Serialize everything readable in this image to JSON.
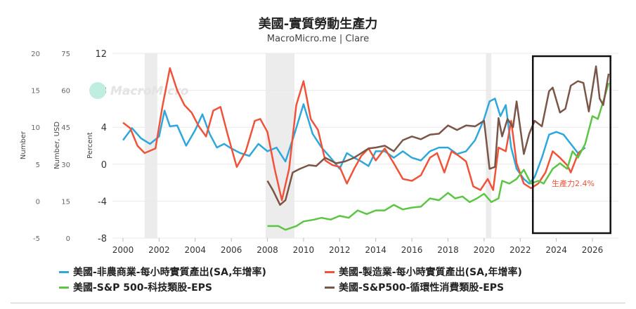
{
  "chart_data": {
    "type": "line",
    "title": "美國-實質勞動生產力",
    "subtitle": "MacroMicro.me | Clare",
    "watermark": "MacroMicro",
    "xlabel": "",
    "xlim": [
      2000,
      2027
    ],
    "x_ticks": [
      "2000",
      "2002",
      "2004",
      "2006",
      "2008",
      "2010",
      "2012",
      "2014",
      "2016",
      "2018",
      "2020",
      "2022",
      "2024",
      "2026"
    ],
    "y_axes": [
      {
        "label": "Number",
        "ticks": [
          "20",
          "15",
          "10",
          "5",
          "0",
          "-5"
        ],
        "range": [
          -5,
          20
        ]
      },
      {
        "label": "Number, USD",
        "ticks": [
          "75",
          "60",
          "45",
          "30",
          "15",
          "0"
        ],
        "range": [
          0,
          75
        ]
      },
      {
        "label": "Percent",
        "ticks": [
          "12",
          "8",
          "4",
          "0",
          "-4",
          "-8"
        ],
        "range": [
          -8,
          12
        ]
      }
    ],
    "recession_shading": [
      [
        2001.2,
        2001.9
      ],
      [
        2007.9,
        2009.5
      ],
      [
        2020.1,
        2020.4
      ]
    ],
    "highlight_box": {
      "x_range": [
        2022.7,
        2027
      ],
      "annotation": "生產力2.4%"
    },
    "grid": true,
    "legend_position": "bottom",
    "values_note": "all series values expressed on Percent-axis scale",
    "series": [
      {
        "name": "美國-非農商業-每小時實質產出(SA,年增率)",
        "color": "#2ea8dc",
        "x": [
          2000,
          2000.5,
          2001,
          2001.5,
          2002,
          2002.3,
          2002.6,
          2003,
          2003.5,
          2004,
          2004.4,
          2004.8,
          2005.2,
          2005.6,
          2006,
          2006.5,
          2007,
          2007.5,
          2008,
          2008.5,
          2009,
          2009.5,
          2010,
          2010.5,
          2011,
          2011.5,
          2012,
          2012.4,
          2012.8,
          2013.2,
          2013.6,
          2014,
          2014.5,
          2015,
          2015.5,
          2016,
          2016.5,
          2017,
          2017.5,
          2018,
          2018.5,
          2019,
          2019.5,
          2020,
          2020.3,
          2020.6,
          2020.9,
          2021.2,
          2021.5,
          2021.8,
          2022.2,
          2022.5,
          2022.8,
          2023.2,
          2023.6,
          2024,
          2024.4,
          2024.8,
          2025.2,
          2025.6
        ],
        "y": [
          2.6,
          3.9,
          2.8,
          2.2,
          3,
          5.8,
          4.1,
          4.2,
          2,
          3.7,
          5.4,
          3.3,
          1.8,
          2.2,
          1.7,
          1.2,
          0.9,
          2.2,
          1.4,
          1.8,
          0.3,
          3.3,
          6.5,
          3.3,
          1.8,
          0.7,
          -0.5,
          1.2,
          0.7,
          0.3,
          -0.2,
          1.4,
          1.4,
          0.7,
          1.4,
          0.7,
          0.4,
          1.4,
          1.8,
          1.8,
          1.1,
          1.4,
          2.6,
          4.9,
          6.8,
          7.1,
          5.2,
          6.4,
          1.8,
          -0.5,
          -1.6,
          -2.1,
          -1.4,
          0.7,
          3.2,
          3.5,
          3.2,
          2.2,
          1.2,
          1.8
        ]
      },
      {
        "name": "美國-製造業-每小時實質產出(SA,年增率)",
        "color": "#f0523a",
        "x": [
          2000,
          2000.4,
          2000.8,
          2001.2,
          2001.8,
          2002.2,
          2002.6,
          2003,
          2003.4,
          2003.8,
          2004.2,
          2004.6,
          2005,
          2005.4,
          2005.8,
          2006.3,
          2006.8,
          2007.3,
          2007.6,
          2008,
          2008.4,
          2008.8,
          2009.2,
          2009.6,
          2010,
          2010.4,
          2010.8,
          2011.2,
          2011.6,
          2012,
          2012.4,
          2012.8,
          2013.2,
          2013.6,
          2014,
          2014.5,
          2015,
          2015.5,
          2016,
          2016.5,
          2017,
          2017.4,
          2017.8,
          2018.2,
          2018.6,
          2019,
          2019.4,
          2019.8,
          2020.2,
          2020.5,
          2020.8,
          2021.2,
          2021.5,
          2021.8,
          2022.2,
          2022.6,
          2023,
          2023.4,
          2023.8,
          2024.2,
          2024.6,
          2024.8,
          2025.2,
          2025.5
        ],
        "y": [
          4.5,
          3.9,
          2,
          1.2,
          1.7,
          6.4,
          10.4,
          8,
          6.4,
          5.6,
          4.1,
          3,
          5.8,
          6.2,
          3.2,
          -0.3,
          1.4,
          4.7,
          4.9,
          3.5,
          -0.5,
          -3.9,
          -0.5,
          6.4,
          9,
          4.9,
          3.7,
          0.4,
          -0.1,
          -0.3,
          -2.1,
          -0.5,
          0.9,
          1.7,
          0.4,
          1.7,
          0.1,
          -1.6,
          -1.8,
          -1.2,
          0.7,
          1.2,
          -0.9,
          1.4,
          0.9,
          0.3,
          -2.4,
          -2.8,
          -1.6,
          -2.8,
          1.8,
          1.4,
          4.7,
          0.1,
          -2.1,
          -2.6,
          -2.1,
          -0.9,
          1.4,
          0.7,
          -0.1,
          -0.9,
          1.1,
          1.7
        ]
      },
      {
        "name": "美國-S&P 500-科技類股-EPS",
        "color": "#5cc644",
        "x": [
          2008,
          2008.6,
          2009,
          2009.6,
          2010,
          2010.6,
          2011,
          2011.5,
          2012,
          2012.5,
          2013,
          2013.5,
          2014,
          2014.5,
          2015,
          2015.5,
          2016,
          2016.5,
          2017,
          2017.5,
          2018,
          2018.4,
          2018.8,
          2019.2,
          2019.6,
          2020,
          2020.4,
          2020.8,
          2021,
          2021.4,
          2021.8,
          2022.2,
          2022.6,
          2023,
          2023.3,
          2023.8,
          2024.2,
          2024.6,
          2024.9,
          2025.2,
          2025.6,
          2026,
          2026.3,
          2026.6,
          2026.9
        ],
        "y": [
          -6.7,
          -6.7,
          -7.1,
          -6.7,
          -6.2,
          -6,
          -5.8,
          -6,
          -5.6,
          -5.8,
          -5,
          -5.4,
          -5,
          -5,
          -4.4,
          -4.9,
          -4.7,
          -4.6,
          -3.7,
          -3.9,
          -3.1,
          -3.7,
          -3.5,
          -4.1,
          -3.7,
          -3.2,
          -4.1,
          -3.7,
          -1.8,
          -2.1,
          -1.6,
          -0.6,
          -2.1,
          -1.8,
          -2.1,
          -0.5,
          0.1,
          -0.5,
          1.4,
          0.7,
          2.2,
          5.2,
          4.9,
          6.8,
          8.8
        ]
      },
      {
        "name": "美國-S&P500-循環性消費類股-EPS",
        "color": "#7a5548",
        "x": [
          2008,
          2008.3,
          2008.7,
          2009,
          2009.4,
          2009.8,
          2010.3,
          2010.7,
          2011.2,
          2011.8,
          2012.3,
          2012.8,
          2013.2,
          2013.6,
          2014,
          2014.5,
          2015,
          2015.5,
          2016,
          2016.5,
          2017,
          2017.5,
          2018,
          2018.5,
          2019,
          2019.5,
          2020,
          2020.3,
          2020.6,
          2020.8,
          2021,
          2021.3,
          2021.6,
          2021.8,
          2022.2,
          2022.5,
          2022.8,
          2023.2,
          2023.6,
          2023.8,
          2024.2,
          2024.5,
          2024.8,
          2025.2,
          2025.5,
          2025.8,
          2026.2,
          2026.4,
          2026.6,
          2026.9
        ],
        "y": [
          -1.8,
          -2.8,
          -4.4,
          -3.9,
          -0.9,
          -0.5,
          -0.1,
          -0.2,
          0.7,
          0.1,
          0.3,
          0.7,
          1.2,
          1.7,
          1.8,
          2,
          1.4,
          2.6,
          3,
          2.7,
          3.2,
          3.3,
          4.2,
          3.7,
          4.2,
          4.1,
          4.7,
          -0.5,
          -0.3,
          5,
          3,
          4.9,
          4,
          6.8,
          1.1,
          3.3,
          4.7,
          4.1,
          7.9,
          8.3,
          5.6,
          6,
          8.5,
          9,
          8.8,
          5.7,
          10.6,
          7.1,
          6.4,
          9.8
        ]
      }
    ]
  }
}
